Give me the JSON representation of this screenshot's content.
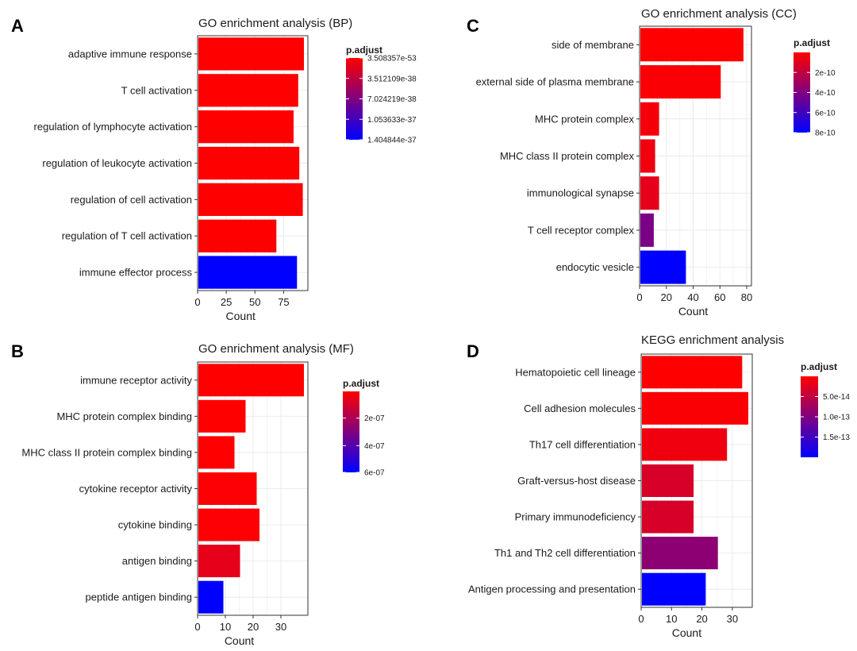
{
  "legend_title": "p.adjust",
  "colors": {
    "high": "#ff0000",
    "low": "#0000ff"
  },
  "chart_data": [
    {
      "panel": "A",
      "type": "bar",
      "orientation": "horizontal",
      "title": "GO enrichment analysis (BP)",
      "xlabel": "Count",
      "xlim": [
        0,
        92
      ],
      "xticks": [
        "0",
        "25",
        "50",
        "75"
      ],
      "xtick_values": [
        0,
        25,
        50,
        75
      ],
      "grid": true,
      "legend_placement": "right",
      "categories": [
        "adaptive immune response",
        "T cell activation",
        "regulation of lymphocyte activation",
        "regulation of leukocyte activation",
        "regulation of cell activation",
        "regulation of T cell activation",
        "immune effector process"
      ],
      "values": [
        92,
        87,
        83,
        88,
        91,
        68,
        86
      ],
      "color_value": [
        0.0,
        0.0,
        0.0,
        0.0,
        0.0,
        0.0,
        1.0
      ],
      "legend_ticks": [
        "3.508357e-53",
        "3.512109e-38",
        "7.024219e-38",
        "1.053633e-37",
        "1.404844e-37"
      ],
      "legend_tick_values": [
        0.0,
        0.25,
        0.5,
        0.75,
        1.0
      ]
    },
    {
      "panel": "C",
      "type": "bar",
      "orientation": "horizontal",
      "title": "GO enrichment analysis (CC)",
      "xlabel": "Count",
      "xlim": [
        0,
        80
      ],
      "xticks": [
        "0",
        "20",
        "40",
        "60",
        "80"
      ],
      "xtick_values": [
        0,
        20,
        40,
        60,
        80
      ],
      "grid": true,
      "legend_placement": "right",
      "categories": [
        "side of membrane",
        "external side of plasma membrane",
        "MHC protein complex",
        "MHC class II protein complex",
        "immunological synapse",
        "T cell receptor complex",
        "endocytic vesicle"
      ],
      "values": [
        77,
        60,
        14,
        11,
        14,
        10,
        34
      ],
      "color_value": [
        0.0,
        0.02,
        0.04,
        0.06,
        0.1,
        0.52,
        1.0
      ],
      "legend_ticks": [
        "2e-10",
        "4e-10",
        "6e-10",
        "8e-10"
      ],
      "legend_tick_values": [
        0.25,
        0.5,
        0.75,
        1.0
      ]
    },
    {
      "panel": "B",
      "type": "bar",
      "orientation": "horizontal",
      "title": "GO enrichment analysis (MF)",
      "xlabel": "Count",
      "xlim": [
        0,
        38
      ],
      "xticks": [
        "0",
        "10",
        "20",
        "30"
      ],
      "xtick_values": [
        0,
        10,
        20,
        30
      ],
      "grid": true,
      "legend_placement": "right",
      "categories": [
        "immune receptor activity",
        "MHC protein complex binding",
        "MHC class II protein complex binding",
        "cytokine receptor activity",
        "cytokine binding",
        "antigen binding",
        "peptide antigen binding"
      ],
      "values": [
        38,
        17,
        13,
        21,
        22,
        15,
        9
      ],
      "color_value": [
        0.0,
        0.0,
        0.0,
        0.01,
        0.01,
        0.1,
        1.0
      ],
      "legend_ticks": [
        "2e-07",
        "4e-07",
        "6e-07"
      ],
      "legend_tick_values": [
        0.33,
        0.67,
        1.0
      ]
    },
    {
      "panel": "D",
      "type": "bar",
      "orientation": "horizontal",
      "title": "KEGG enrichment analysis",
      "xlabel": "Count",
      "xlim": [
        0,
        35
      ],
      "xticks": [
        "0",
        "10",
        "20",
        "30"
      ],
      "xtick_values": [
        0,
        10,
        20,
        30
      ],
      "grid": true,
      "legend_placement": "right",
      "categories": [
        "Hematopoietic cell lineage",
        "Cell adhesion molecules",
        "Th17 cell differentiation",
        "Graft-versus-host disease",
        "Primary immunodeficiency",
        "Th1 and Th2 cell differentiation",
        "Antigen processing and presentation"
      ],
      "values": [
        33,
        35,
        28,
        17,
        17,
        25,
        21
      ],
      "color_value": [
        0.0,
        0.02,
        0.06,
        0.16,
        0.16,
        0.45,
        1.0
      ],
      "legend_ticks": [
        "5.0e-14",
        "1.0e-13",
        "1.5e-13"
      ],
      "legend_tick_values": [
        0.25,
        0.5,
        0.75
      ]
    }
  ],
  "panels": [
    {
      "letter": "A"
    },
    {
      "letter": "C"
    },
    {
      "letter": "B"
    },
    {
      "letter": "D"
    }
  ]
}
